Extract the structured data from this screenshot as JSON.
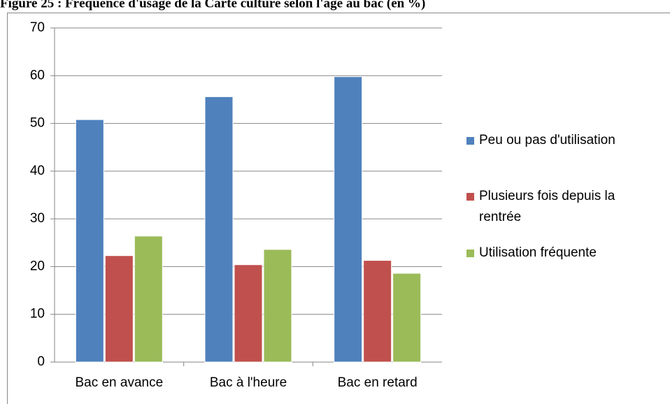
{
  "chart_data": {
    "type": "bar",
    "title": "Figure 25 : Fréquence d'usage de la Carte culture selon l'âge au bac (en %)",
    "categories": [
      "Bac en avance",
      "Bac à l'heure",
      "Bac en retard"
    ],
    "series": [
      {
        "name": "Peu ou pas d'utilisation",
        "color": "#4f81bd",
        "values": [
          50.8,
          55.6,
          59.8
        ]
      },
      {
        "name": "Plusieurs fois depuis la rentrée",
        "color": "#c0504d",
        "values": [
          22.3,
          20.4,
          21.3
        ]
      },
      {
        "name": "Utilisation fréquente",
        "color": "#9bbb59",
        "values": [
          26.4,
          23.6,
          18.6
        ]
      }
    ],
    "ylim": [
      0,
      70
    ],
    "yticks": [
      0,
      10,
      20,
      30,
      40,
      50,
      60,
      70
    ],
    "grid": true,
    "legend": "right"
  }
}
